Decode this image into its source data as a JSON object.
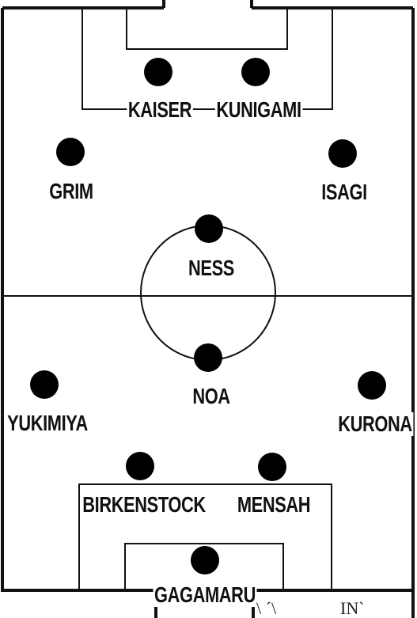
{
  "formation": {
    "players": [
      {
        "id": "kaiser",
        "name": "KAISER"
      },
      {
        "id": "kunigami",
        "name": "KUNIGAMI"
      },
      {
        "id": "grim",
        "name": "GRIM"
      },
      {
        "id": "isagi",
        "name": "ISAGI"
      },
      {
        "id": "ness",
        "name": "NESS"
      },
      {
        "id": "noa",
        "name": "NOA"
      },
      {
        "id": "yukimiya",
        "name": "YUKIMIYA"
      },
      {
        "id": "kurona",
        "name": "KURONA"
      },
      {
        "id": "birkenstock",
        "name": "BIRKENSTOCK"
      },
      {
        "id": "mensah",
        "name": "MENSAH"
      },
      {
        "id": "gagamaru",
        "name": "GAGAMARU"
      }
    ]
  },
  "scribble": {
    "left_marks": "\\ ´\\",
    "right_marks": "IN`"
  }
}
